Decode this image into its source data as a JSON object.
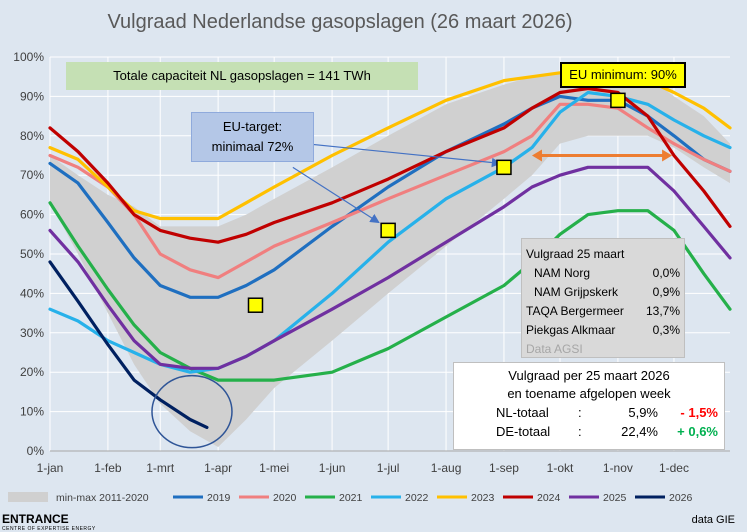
{
  "chart_data": {
    "type": "line",
    "title": "Vulgraad Nederlandse gasopslagen (26 maart 2026)",
    "xlabel": "",
    "ylabel": "",
    "x_ticks": [
      "1-jan",
      "1-feb",
      "1-mrt",
      "1-apr",
      "1-mei",
      "1-jun",
      "1-jul",
      "1-aug",
      "1-sep",
      "1-okt",
      "1-nov",
      "1-dec"
    ],
    "x_tick_days": [
      0,
      31,
      59,
      90,
      120,
      151,
      181,
      212,
      243,
      273,
      304,
      334
    ],
    "xlim": [
      0,
      364
    ],
    "y_ticks": [
      "0%",
      "10%",
      "20%",
      "30%",
      "40%",
      "50%",
      "60%",
      "70%",
      "80%",
      "90%",
      "100%"
    ],
    "ylim": [
      0,
      100
    ],
    "grid": true,
    "legend_position": "bottom",
    "band": {
      "name": "min-max 2011-2020",
      "color": "#d0d0d0",
      "x": [
        0,
        15,
        31,
        45,
        59,
        75,
        90,
        105,
        120,
        151,
        181,
        212,
        243,
        258,
        273,
        288,
        304,
        320,
        334,
        350,
        364
      ],
      "min": [
        63,
        50,
        35,
        22,
        12,
        5,
        1,
        8,
        16,
        28,
        40,
        52,
        64,
        70,
        78,
        80,
        80,
        80,
        77,
        72,
        68
      ],
      "max": [
        75,
        70,
        65,
        62,
        57,
        57,
        57,
        60,
        64,
        72,
        80,
        88,
        93,
        95,
        96,
        96,
        96,
        95,
        90,
        85,
        78
      ]
    },
    "series": [
      {
        "name": "2019",
        "color": "#1f6fc0",
        "x": [
          0,
          15,
          31,
          45,
          59,
          75,
          90,
          105,
          120,
          151,
          181,
          212,
          243,
          258,
          273,
          288,
          304,
          320,
          334,
          350,
          364
        ],
        "y": [
          73,
          68,
          58,
          49,
          42,
          39,
          39,
          42,
          46,
          57,
          67,
          76,
          83,
          87,
          90,
          89,
          89,
          85,
          80,
          74,
          71
        ]
      },
      {
        "name": "2020",
        "color": "#f07f7f",
        "x": [
          0,
          15,
          31,
          45,
          59,
          75,
          90,
          105,
          120,
          151,
          181,
          212,
          243,
          258,
          273,
          288,
          304,
          320,
          334,
          350,
          364
        ],
        "y": [
          75,
          72,
          67,
          60,
          50,
          46,
          44,
          48,
          52,
          58,
          64,
          70,
          76,
          80,
          88,
          88,
          87,
          82,
          78,
          74,
          71
        ]
      },
      {
        "name": "2021",
        "color": "#25b04a",
        "x": [
          0,
          15,
          31,
          45,
          59,
          75,
          90,
          105,
          120,
          151,
          181,
          212,
          243,
          258,
          273,
          288,
          304,
          320,
          334,
          350,
          364
        ],
        "y": [
          63,
          52,
          41,
          32,
          25,
          21,
          18,
          18,
          18,
          20,
          26,
          34,
          42,
          48,
          55,
          60,
          61,
          61,
          56,
          45,
          36
        ]
      },
      {
        "name": "2022",
        "color": "#27b1ea",
        "x": [
          0,
          15,
          31,
          45,
          59,
          75,
          90,
          105,
          120,
          151,
          181,
          212,
          243,
          258,
          273,
          288,
          304,
          320,
          334,
          350,
          364
        ],
        "y": [
          36,
          33,
          28,
          25,
          22,
          20,
          21,
          24,
          28,
          40,
          53,
          64,
          72,
          77,
          86,
          91,
          90,
          88,
          84,
          80,
          77
        ]
      },
      {
        "name": "2023",
        "color": "#ffc000",
        "x": [
          0,
          15,
          31,
          45,
          59,
          75,
          90,
          105,
          120,
          151,
          181,
          212,
          243,
          258,
          273,
          288,
          304,
          320,
          334,
          350,
          364
        ],
        "y": [
          77,
          74,
          67,
          61,
          59,
          59,
          59,
          63,
          67,
          75,
          82,
          89,
          94,
          95,
          96,
          96,
          96,
          94,
          91,
          87,
          82
        ]
      },
      {
        "name": "2024",
        "color": "#c00000",
        "x": [
          0,
          15,
          31,
          45,
          59,
          75,
          90,
          105,
          120,
          151,
          181,
          212,
          243,
          258,
          273,
          288,
          304,
          320,
          334,
          350,
          364
        ],
        "y": [
          82,
          76,
          68,
          60,
          56,
          54,
          53,
          55,
          58,
          63,
          69,
          76,
          82,
          87,
          91,
          92,
          91,
          85,
          75,
          66,
          57
        ]
      },
      {
        "name": "2025",
        "color": "#7030a0",
        "x": [
          0,
          15,
          31,
          45,
          59,
          75,
          90,
          105,
          120,
          151,
          181,
          212,
          243,
          258,
          273,
          288,
          304,
          320,
          334,
          350,
          364
        ],
        "y": [
          56,
          48,
          37,
          28,
          22,
          21,
          21,
          24,
          28,
          36,
          44,
          53,
          62,
          67,
          70,
          72,
          72,
          72,
          66,
          57,
          49
        ]
      },
      {
        "name": "2026",
        "color": "#002060",
        "x": [
          0,
          15,
          31,
          45,
          59,
          75,
          84
        ],
        "y": [
          48,
          38,
          27,
          18,
          13,
          8,
          6
        ]
      }
    ],
    "target_markers": [
      {
        "x": 110,
        "y": 37
      },
      {
        "x": 181,
        "y": 56
      },
      {
        "x": 243,
        "y": 72
      },
      {
        "x": 304,
        "y": 89
      }
    ]
  },
  "capacity_text": "Totale capaciteit NL gasopslagen = 141 TWh",
  "eu_target": {
    "line1": "EU-target:",
    "line2": "minimaal 72%"
  },
  "eu_minimum": "EU minimum: 90%",
  "fill_25": {
    "title": "Vulgraad 25 maart",
    "rows": [
      {
        "label": "NAM Norg",
        "value": "0,0%"
      },
      {
        "label": "NAM Grijpskerk",
        "value": "0,9%"
      },
      {
        "label": "TAQA Bergermeer",
        "value": "13,7%"
      },
      {
        "label": "Piekgas Alkmaar",
        "value": "0,3%"
      }
    ],
    "source": "Data AGSI"
  },
  "weekly": {
    "line1": "Vulgraad per 25 maart 2026",
    "line2": "en toename afgelopen week",
    "rows": [
      {
        "label": "NL-totaal",
        "sep": ":",
        "value": "5,9%",
        "change": "- 1,5%",
        "color": "#ff0000"
      },
      {
        "label": "DE-totaal",
        "sep": ":",
        "value": "22,4%",
        "change": "+ 0,6%",
        "color": "#00b050"
      }
    ]
  },
  "footer": {
    "logo": "ENTRANCE",
    "logo_sub": "CENTRE OF EXPERTISE ENERGY",
    "source": "data GIE"
  }
}
